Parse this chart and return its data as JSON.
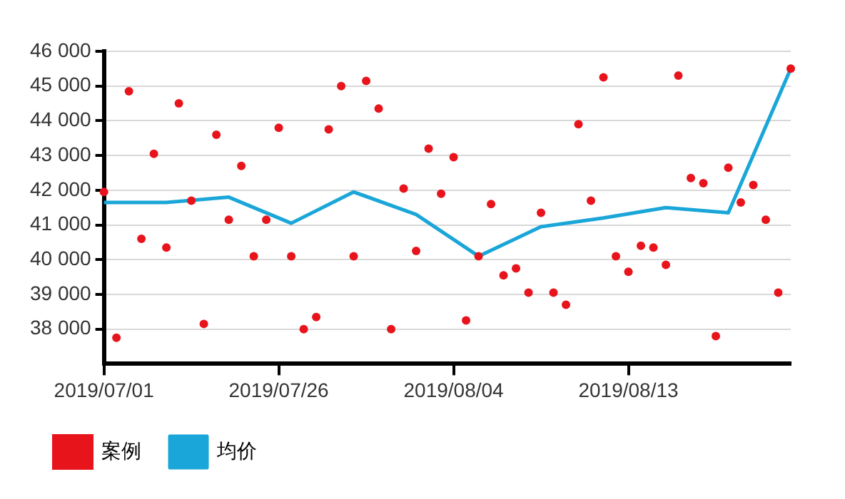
{
  "chart_data": {
    "type": "line",
    "categories": [
      "2019/07/01",
      null,
      null,
      null,
      null,
      null,
      null,
      null,
      null,
      null,
      null,
      null,
      null,
      null,
      "2019/07/26",
      null,
      null,
      null,
      null,
      null,
      null,
      null,
      null,
      null,
      null,
      null,
      null,
      null,
      "2019/08/04",
      null,
      null,
      null,
      null,
      null,
      null,
      null,
      null,
      null,
      null,
      null,
      null,
      null,
      "2019/08/13",
      null,
      null,
      null,
      null,
      null,
      null,
      null,
      null,
      null,
      null,
      null,
      null,
      null
    ],
    "series": [
      {
        "name": "案例",
        "type": "scatter",
        "marker": "circle",
        "color": "#e8141c",
        "values": [
          41950,
          37750,
          44850,
          40600,
          43050,
          40350,
          44500,
          41700,
          38150,
          43600,
          41150,
          42700,
          40100,
          41150,
          43800,
          40100,
          38000,
          38350,
          43750,
          45000,
          40100,
          45150,
          44350,
          38000,
          42050,
          40250,
          43200,
          41900,
          42950,
          38250,
          40100,
          41600,
          39550,
          39750,
          39050,
          41350,
          39050,
          38700,
          43900,
          41700,
          45250,
          40100,
          39650,
          40400,
          40350,
          39850,
          45300,
          42350,
          42200,
          37800,
          42650,
          41650,
          42150,
          41150,
          39050,
          45500
        ]
      },
      {
        "name": "均价",
        "type": "line",
        "marker": "none",
        "color": "#1aa6d8",
        "values": [
          41650,
          null,
          null,
          null,
          null,
          41650,
          null,
          null,
          null,
          null,
          41800,
          null,
          null,
          null,
          null,
          41050,
          null,
          null,
          null,
          null,
          41950,
          null,
          null,
          null,
          null,
          41300,
          null,
          null,
          null,
          null,
          40100,
          null,
          null,
          null,
          null,
          40950,
          null,
          null,
          null,
          null,
          41200,
          null,
          null,
          null,
          null,
          41500,
          null,
          null,
          null,
          null,
          41350,
          null,
          null,
          null,
          null,
          45500
        ]
      }
    ],
    "ylim": [
      37000,
      46000
    ],
    "yticks": [
      38000,
      39000,
      40000,
      41000,
      42000,
      43000,
      44000,
      45000,
      46000
    ],
    "grid": "y",
    "legend": "bottom left"
  }
}
